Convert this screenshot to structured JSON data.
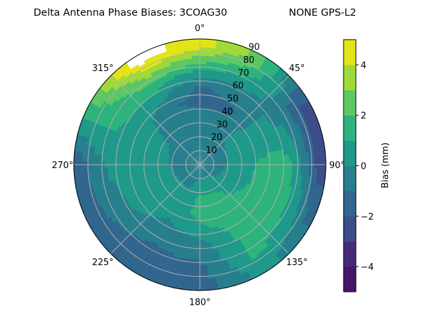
{
  "chart_data": {
    "type": "heatmap",
    "subtype": "polar-filled-contour",
    "title": "Delta Antenna Phase Biases: 3COAG30",
    "title_right": "NONE GPS-L2",
    "azimuth_tick_labels": [
      "0°",
      "45°",
      "90°",
      "135°",
      "180°",
      "225°",
      "270°",
      "315°"
    ],
    "radial_tick_labels": [
      "10",
      "20",
      "30",
      "40",
      "50",
      "60",
      "70",
      "80",
      "90"
    ],
    "radial_range": [
      0,
      90
    ],
    "grid": true,
    "colorbar": {
      "label": "Bias (mm)",
      "levels": [
        -5,
        -4,
        -3,
        -2,
        -1,
        0,
        1,
        2,
        3,
        4,
        5
      ],
      "tick_labels": [
        "−4",
        "−2",
        "0",
        "2",
        "4"
      ],
      "ticks": [
        -4,
        -2,
        0,
        2,
        4
      ],
      "colors": [
        "#471669",
        "#472b7a",
        "#3d4d8a",
        "#31668e",
        "#277f8e",
        "#1f998a",
        "#2eb37c",
        "#5dc863",
        "#a0da39",
        "#e2e418"
      ]
    },
    "azimuth_centers_deg": [
      0,
      30,
      60,
      90,
      120,
      150,
      180,
      210,
      240,
      270,
      300,
      330
    ],
    "zenith_centers_deg": [
      5,
      15,
      25,
      35,
      45,
      55,
      65,
      75,
      85
    ],
    "values_mm": [
      [
        -0.5,
        -0.5,
        -0.5,
        -0.7,
        -1.3,
        -1.2,
        0.5,
        2.5,
        4.5
      ],
      [
        -0.5,
        -0.5,
        -0.3,
        -0.8,
        -1.2,
        -0.5,
        0.2,
        1.5,
        2.5
      ],
      [
        -0.5,
        -0.3,
        0.2,
        0.5,
        0.3,
        0.2,
        -0.3,
        -1.2,
        -2.2
      ],
      [
        -0.4,
        -0.2,
        0.3,
        0.8,
        1.2,
        1.5,
        1.2,
        -0.5,
        -2.5
      ],
      [
        -0.3,
        0.0,
        0.5,
        1.0,
        1.3,
        1.5,
        1.3,
        0.5,
        -1.0
      ],
      [
        -0.3,
        0.3,
        1.2,
        1.5,
        1.5,
        1.3,
        1.2,
        1.2,
        0.5
      ],
      [
        -0.5,
        0.5,
        1.2,
        1.3,
        0.8,
        -0.3,
        -0.8,
        -1.3,
        -1.5
      ],
      [
        -0.5,
        -0.2,
        0.3,
        0.5,
        0.0,
        -0.5,
        -1.0,
        -1.5,
        -1.8
      ],
      [
        -0.5,
        -0.3,
        0.5,
        0.8,
        0.5,
        0.2,
        -0.5,
        -1.0,
        -1.5
      ],
      [
        -0.5,
        -0.5,
        0.3,
        0.5,
        0.5,
        0.3,
        0.2,
        -0.5,
        -1.5
      ],
      [
        -0.5,
        -0.5,
        0.0,
        0.2,
        0.5,
        0.8,
        1.2,
        1.5,
        2.0
      ],
      [
        -0.5,
        -0.5,
        -0.5,
        -0.5,
        -0.8,
        0.3,
        1.5,
        3.5,
        5.5
      ]
    ]
  }
}
